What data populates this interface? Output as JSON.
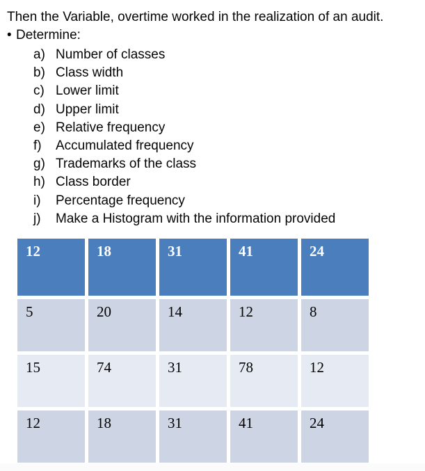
{
  "page": {
    "title_line": "Then the Variable, overtime worked in the realization of an audit.",
    "bullet": "•",
    "determine_label": "Determine:"
  },
  "list": {
    "items": [
      {
        "letter": "a)",
        "text": "Number of classes"
      },
      {
        "letter": "b)",
        "text": "Class width"
      },
      {
        "letter": "c)",
        "text": "Lower limit"
      },
      {
        "letter": "d)",
        "text": "Upper limit"
      },
      {
        "letter": "e)",
        "text": "Relative frequency"
      },
      {
        "letter": "f)",
        "text": "Accumulated frequency"
      },
      {
        "letter": "g)",
        "text": "Trademarks of the class"
      },
      {
        "letter": "h)",
        "text": "Class border"
      },
      {
        "letter": "i)",
        "text": "Percentage frequency"
      },
      {
        "letter": "j)",
        "text": "Make a Histogram with the information provided"
      }
    ]
  },
  "table": {
    "colors": {
      "header_bg": "#4a7ebd",
      "header_text": "#ffffff",
      "band_dark": "#cdd4e4",
      "band_light": "#e6eaf3",
      "body_text": "#000000"
    },
    "header": [
      "12",
      "18",
      "31",
      "41",
      "24"
    ],
    "rows": [
      {
        "band": "dark",
        "cells": [
          "5",
          "20",
          "14",
          "12",
          "8"
        ]
      },
      {
        "band": "light",
        "cells": [
          "15",
          "74",
          "31",
          "78",
          "12"
        ]
      },
      {
        "band": "dark",
        "cells": [
          "12",
          "18",
          "31",
          "41",
          "24"
        ]
      }
    ]
  }
}
